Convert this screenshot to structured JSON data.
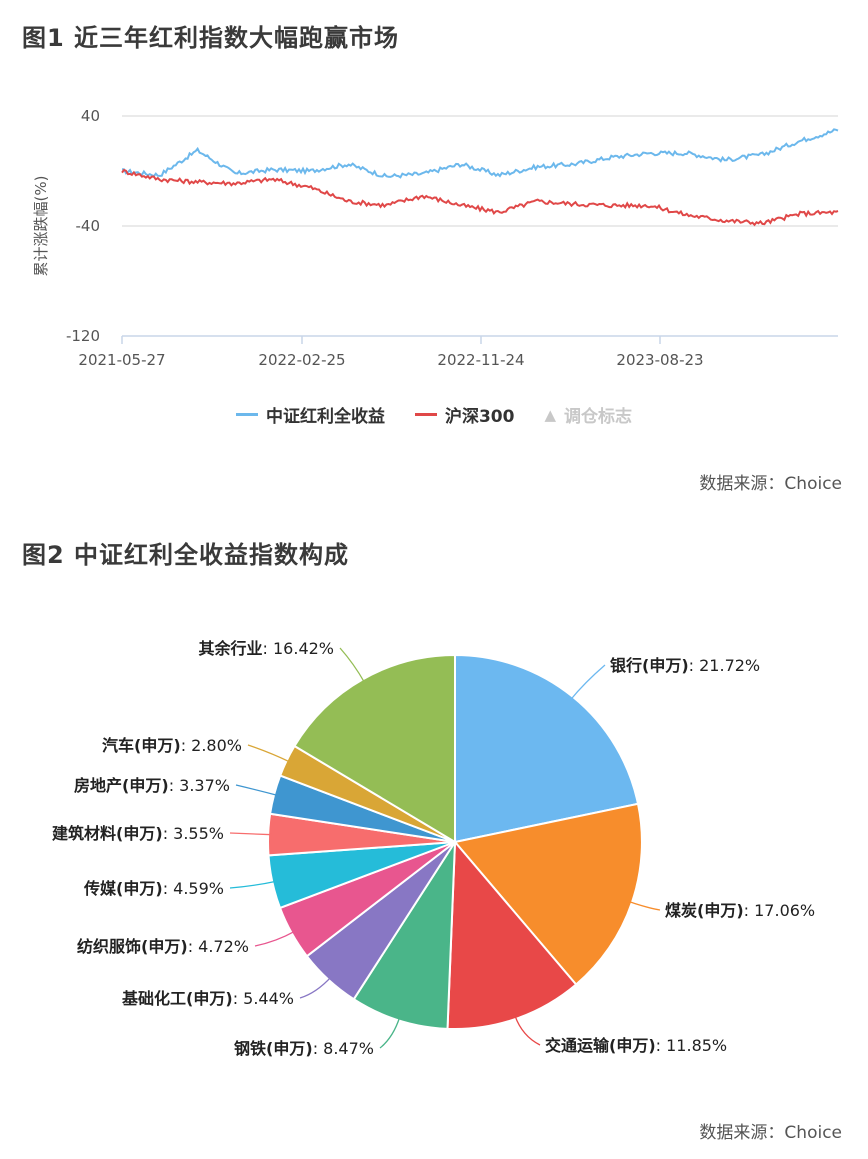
{
  "figure1": {
    "title": "图1  近三年红利指数大幅跑赢市场",
    "source": "数据来源：Choice",
    "legend": [
      {
        "label": "中证红利全收益",
        "color": "#6cb8ec"
      },
      {
        "label": "沪深300",
        "color": "#e04848"
      },
      {
        "label": "调仓标志",
        "color": "#c8c8c8",
        "icon": "triangle-icon"
      }
    ]
  },
  "figure2": {
    "title": "图2  中证红利全收益指数构成",
    "source": "数据来源：Choice"
  },
  "chart_data": [
    {
      "type": "line",
      "title": "近三年红利指数大幅跑赢市场",
      "xlabel": "",
      "ylabel": "累计涨跌幅(%)",
      "ylim": [
        -120,
        40
      ],
      "yticks": [
        40,
        -40,
        -120
      ],
      "xticks": [
        "2021-05-27",
        "2022-02-25",
        "2022-11-24",
        "2023-08-23"
      ],
      "grid": true,
      "legend_position": "bottom",
      "x": [
        "2021-05-27",
        "2021-08",
        "2021-09",
        "2021-11",
        "2022-01",
        "2022-02-25",
        "2022-04",
        "2022-06",
        "2022-08",
        "2022-10",
        "2022-11-24",
        "2023-01",
        "2023-03",
        "2023-05",
        "2023-08-23",
        "2023-10",
        "2024-01",
        "2024-02",
        "2024-04",
        "2024-05"
      ],
      "series": [
        {
          "name": "中证红利全收益",
          "color": "#6cb8ec",
          "values": [
            0,
            -3,
            15,
            -2,
            1,
            0,
            5,
            -4,
            -2,
            5,
            -3,
            3,
            5,
            10,
            13,
            13,
            8,
            12,
            22,
            30
          ]
        },
        {
          "name": "沪深300",
          "color": "#e04848",
          "values": [
            0,
            -6,
            -8,
            -9,
            -6,
            -12,
            -22,
            -25,
            -18,
            -25,
            -30,
            -22,
            -24,
            -25,
            -25,
            -32,
            -36,
            -38,
            -31,
            -30
          ]
        }
      ],
      "annotations": [
        "调仓标志 (legend toggle, no markers shown)"
      ]
    },
    {
      "type": "pie",
      "title": "中证红利全收益指数构成",
      "categories": [
        "银行(申万)",
        "煤炭(申万)",
        "交通运输(申万)",
        "钢铁(申万)",
        "基础化工(申万)",
        "纺织服饰(申万)",
        "传媒(申万)",
        "建筑材料(申万)",
        "房地产(申万)",
        "汽车(申万)",
        "其余行业"
      ],
      "values": [
        21.72,
        17.06,
        11.85,
        8.47,
        5.44,
        4.72,
        4.59,
        3.55,
        3.37,
        2.8,
        16.42
      ],
      "labels": [
        "银行(申万): 21.72%",
        "煤炭(申万): 17.06%",
        "交通运输(申万): 11.85%",
        "钢铁(申万): 8.47%",
        "基础化工(申万): 5.44%",
        "纺织服饰(申万): 4.72%",
        "传媒(申万): 4.59%",
        "建筑材料(申万): 3.55%",
        "房地产(申万): 3.37%",
        "汽车(申万): 2.80%",
        "其余行业: 16.42%"
      ],
      "colors": [
        "#6cb8f0",
        "#f78d2c",
        "#e84848",
        "#4ab589",
        "#8877c4",
        "#e8568f",
        "#25bcd9",
        "#f76d6d",
        "#3f96d0",
        "#d9a636",
        "#94bd55"
      ]
    }
  ]
}
